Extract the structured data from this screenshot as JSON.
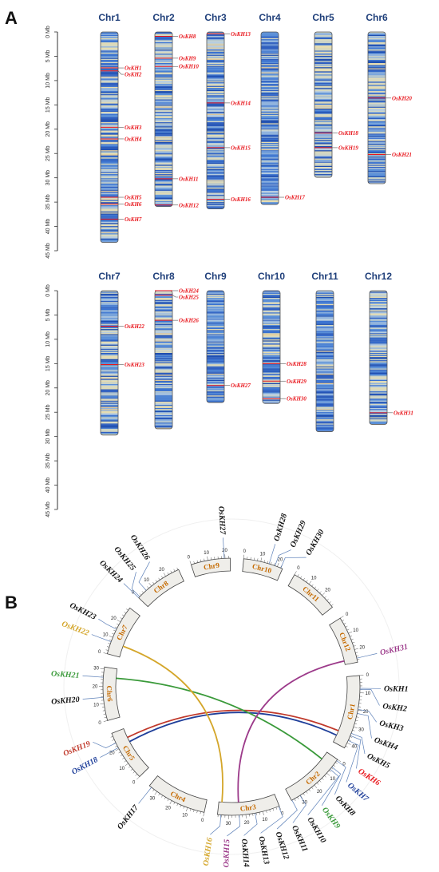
{
  "panels": {
    "a_label": "A",
    "b_label": "B"
  },
  "axis": {
    "unit": "Mb",
    "ticks": [
      0,
      5,
      10,
      15,
      20,
      25,
      30,
      35,
      40,
      45
    ]
  },
  "chromosomes": [
    {
      "name": "Chr1",
      "length": 43.3
    },
    {
      "name": "Chr2",
      "length": 35.9
    },
    {
      "name": "Chr3",
      "length": 36.4
    },
    {
      "name": "Chr4",
      "length": 35.5
    },
    {
      "name": "Chr5",
      "length": 29.9
    },
    {
      "name": "Chr6",
      "length": 31.2
    },
    {
      "name": "Chr7",
      "length": 29.7
    },
    {
      "name": "Chr8",
      "length": 28.4
    },
    {
      "name": "Chr9",
      "length": 23.0
    },
    {
      "name": "Chr10",
      "length": 23.2
    },
    {
      "name": "Chr11",
      "length": 29.0
    },
    {
      "name": "Chr12",
      "length": 27.5
    }
  ],
  "genes": [
    {
      "name": "OsKH1",
      "chr": "Chr1",
      "pos": 7.4
    },
    {
      "name": "OsKH2",
      "chr": "Chr1",
      "pos": 8.0
    },
    {
      "name": "OsKH3",
      "chr": "Chr1",
      "pos": 19.6
    },
    {
      "name": "OsKH4",
      "chr": "Chr1",
      "pos": 22.0
    },
    {
      "name": "OsKH5",
      "chr": "Chr1",
      "pos": 34.0
    },
    {
      "name": "OsKH6",
      "chr": "Chr1",
      "pos": 35.4
    },
    {
      "name": "OsKH7",
      "chr": "Chr1",
      "pos": 38.5
    },
    {
      "name": "OsKH8",
      "chr": "Chr2",
      "pos": 0.9
    },
    {
      "name": "OsKH9",
      "chr": "Chr2",
      "pos": 5.4
    },
    {
      "name": "OsKH10",
      "chr": "Chr2",
      "pos": 7.1
    },
    {
      "name": "OsKH11",
      "chr": "Chr2",
      "pos": 30.2
    },
    {
      "name": "OsKH12",
      "chr": "Chr2",
      "pos": 35.6
    },
    {
      "name": "OsKH13",
      "chr": "Chr3",
      "pos": 0.4
    },
    {
      "name": "OsKH14",
      "chr": "Chr3",
      "pos": 14.6
    },
    {
      "name": "OsKH15",
      "chr": "Chr3",
      "pos": 23.8
    },
    {
      "name": "OsKH16",
      "chr": "Chr3",
      "pos": 34.4
    },
    {
      "name": "OsKH17",
      "chr": "Chr4",
      "pos": 34.0
    },
    {
      "name": "OsKH18",
      "chr": "Chr5",
      "pos": 20.8
    },
    {
      "name": "OsKH19",
      "chr": "Chr5",
      "pos": 23.8
    },
    {
      "name": "OsKH20",
      "chr": "Chr6",
      "pos": 13.6
    },
    {
      "name": "OsKH21",
      "chr": "Chr6",
      "pos": 25.2
    },
    {
      "name": "OsKH22",
      "chr": "Chr7",
      "pos": 7.3
    },
    {
      "name": "OsKH23",
      "chr": "Chr7",
      "pos": 15.2
    },
    {
      "name": "OsKH24",
      "chr": "Chr8",
      "pos": 0.0
    },
    {
      "name": "OsKH25",
      "chr": "Chr8",
      "pos": 0.9
    },
    {
      "name": "OsKH26",
      "chr": "Chr8",
      "pos": 6.1
    },
    {
      "name": "OsKH27",
      "chr": "Chr9",
      "pos": 19.5
    },
    {
      "name": "OsKH28",
      "chr": "Chr10",
      "pos": 15.0
    },
    {
      "name": "OsKH29",
      "chr": "Chr10",
      "pos": 18.6
    },
    {
      "name": "OsKH30",
      "chr": "Chr10",
      "pos": 22.2
    },
    {
      "name": "OsKH31",
      "chr": "Chr12",
      "pos": 25.1
    }
  ],
  "circos": {
    "chr_labels": [
      "Chr1",
      "Chr2",
      "Chr3",
      "Chr4",
      "Chr5",
      "Chr6",
      "Chr7",
      "Chr8",
      "Chr9",
      "Chr10",
      "Chr11",
      "Chr12"
    ],
    "tick_labels": [
      "0",
      "10",
      "20",
      "30",
      "40"
    ],
    "gene_labels": [
      "OsKH1",
      "OsKH2",
      "OsKH3",
      "OsKH4",
      "OsKH5",
      "OsKH6",
      "OsKH7",
      "OsKH8",
      "OsKH9",
      "OsKH10",
      "OsKH11",
      "OsKH12",
      "OsKH13",
      "OsKH14",
      "OsKH15",
      "OsKH16",
      "OsKH17",
      "OsKH18",
      "OsKH19",
      "OsKH20",
      "OsKH21",
      "OsKH22",
      "OsKH23",
      "OsKH24",
      "OsKH25",
      "OsKH26",
      "OsKH27",
      "OsKH28",
      "OsKH29",
      "OsKH30",
      "OsKH31"
    ],
    "highlighted": {
      "OsKH6": "#e8151b",
      "OsKH7": "#1f3f9a",
      "OsKH9": "#3a9a3a",
      "OsKH15": "#9c3a8a",
      "OsKH16": "#d4a62a",
      "OsKH18": "#1f3f9a",
      "OsKH19": "#c0392b",
      "OsKH21": "#3a9a3a",
      "OsKH22": "#d4a62a",
      "OsKH31": "#9c3a8a"
    },
    "links": [
      {
        "from": "OsKH6",
        "to": "OsKH19",
        "color": "#c0392b"
      },
      {
        "from": "OsKH7",
        "to": "OsKH18",
        "color": "#1f3f9a"
      },
      {
        "from": "OsKH9",
        "to": "OsKH21",
        "color": "#3a9a3a"
      },
      {
        "from": "OsKH16",
        "to": "OsKH22",
        "color": "#d4a62a"
      },
      {
        "from": "OsKH15",
        "to": "OsKH31",
        "color": "#9c3a8a"
      }
    ]
  }
}
